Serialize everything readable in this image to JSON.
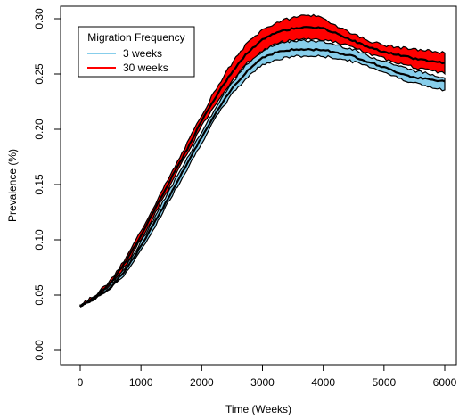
{
  "chart_data": {
    "type": "area",
    "title": "",
    "xlabel": "Time (Weeks)",
    "ylabel": "Prevalence (%)",
    "xlim": [
      0,
      6000
    ],
    "ylim": [
      0,
      0.3
    ],
    "xticks": [
      "0",
      "1000",
      "2000",
      "3000",
      "4000",
      "5000",
      "6000"
    ],
    "yticks": [
      "0.00",
      "0.05",
      "0.10",
      "0.15",
      "0.20",
      "0.25",
      "0.30"
    ],
    "grid": false,
    "legend": {
      "title": "Migration Frequency",
      "placement": "top-left",
      "entries": [
        "3 weeks",
        "30 weeks"
      ]
    },
    "series": [
      {
        "name": "3 weeks",
        "color": "#87CEEB",
        "x": [
          0,
          250,
          500,
          750,
          1000,
          1250,
          1500,
          1750,
          2000,
          2250,
          2500,
          2750,
          3000,
          3250,
          3500,
          3750,
          4000,
          4250,
          4500,
          4750,
          5000,
          5250,
          5500,
          5750,
          6000
        ],
        "lower": [
          0.04,
          0.047,
          0.056,
          0.07,
          0.09,
          0.114,
          0.139,
          0.163,
          0.188,
          0.212,
          0.232,
          0.247,
          0.259,
          0.263,
          0.266,
          0.266,
          0.266,
          0.264,
          0.261,
          0.257,
          0.252,
          0.246,
          0.242,
          0.238,
          0.235
        ],
        "upper": [
          0.041,
          0.048,
          0.059,
          0.075,
          0.098,
          0.123,
          0.148,
          0.173,
          0.198,
          0.221,
          0.242,
          0.259,
          0.271,
          0.278,
          0.28,
          0.28,
          0.279,
          0.276,
          0.272,
          0.266,
          0.262,
          0.257,
          0.253,
          0.25,
          0.247
        ],
        "mean": [
          0.04,
          0.047,
          0.057,
          0.073,
          0.094,
          0.118,
          0.143,
          0.168,
          0.193,
          0.216,
          0.237,
          0.253,
          0.265,
          0.27,
          0.272,
          0.272,
          0.272,
          0.269,
          0.266,
          0.261,
          0.256,
          0.251,
          0.247,
          0.245,
          0.243
        ]
      },
      {
        "name": "30 weeks",
        "color": "#FF0000",
        "x": [
          0,
          250,
          500,
          750,
          1000,
          1250,
          1500,
          1750,
          2000,
          2250,
          2500,
          2750,
          3000,
          3250,
          3500,
          3750,
          4000,
          4250,
          4500,
          4750,
          5000,
          5250,
          5500,
          5750,
          6000
        ],
        "lower": [
          0.04,
          0.048,
          0.059,
          0.077,
          0.1,
          0.126,
          0.151,
          0.177,
          0.203,
          0.225,
          0.244,
          0.26,
          0.271,
          0.278,
          0.281,
          0.282,
          0.281,
          0.278,
          0.274,
          0.268,
          0.264,
          0.26,
          0.256,
          0.253,
          0.251
        ],
        "upper": [
          0.041,
          0.05,
          0.063,
          0.083,
          0.108,
          0.134,
          0.16,
          0.186,
          0.213,
          0.238,
          0.26,
          0.278,
          0.29,
          0.297,
          0.301,
          0.304,
          0.3,
          0.293,
          0.286,
          0.28,
          0.276,
          0.274,
          0.272,
          0.271,
          0.269
        ],
        "mean": [
          0.04,
          0.049,
          0.061,
          0.08,
          0.104,
          0.13,
          0.156,
          0.181,
          0.208,
          0.231,
          0.252,
          0.269,
          0.281,
          0.288,
          0.291,
          0.293,
          0.291,
          0.286,
          0.28,
          0.274,
          0.27,
          0.267,
          0.264,
          0.262,
          0.26
        ]
      }
    ]
  }
}
